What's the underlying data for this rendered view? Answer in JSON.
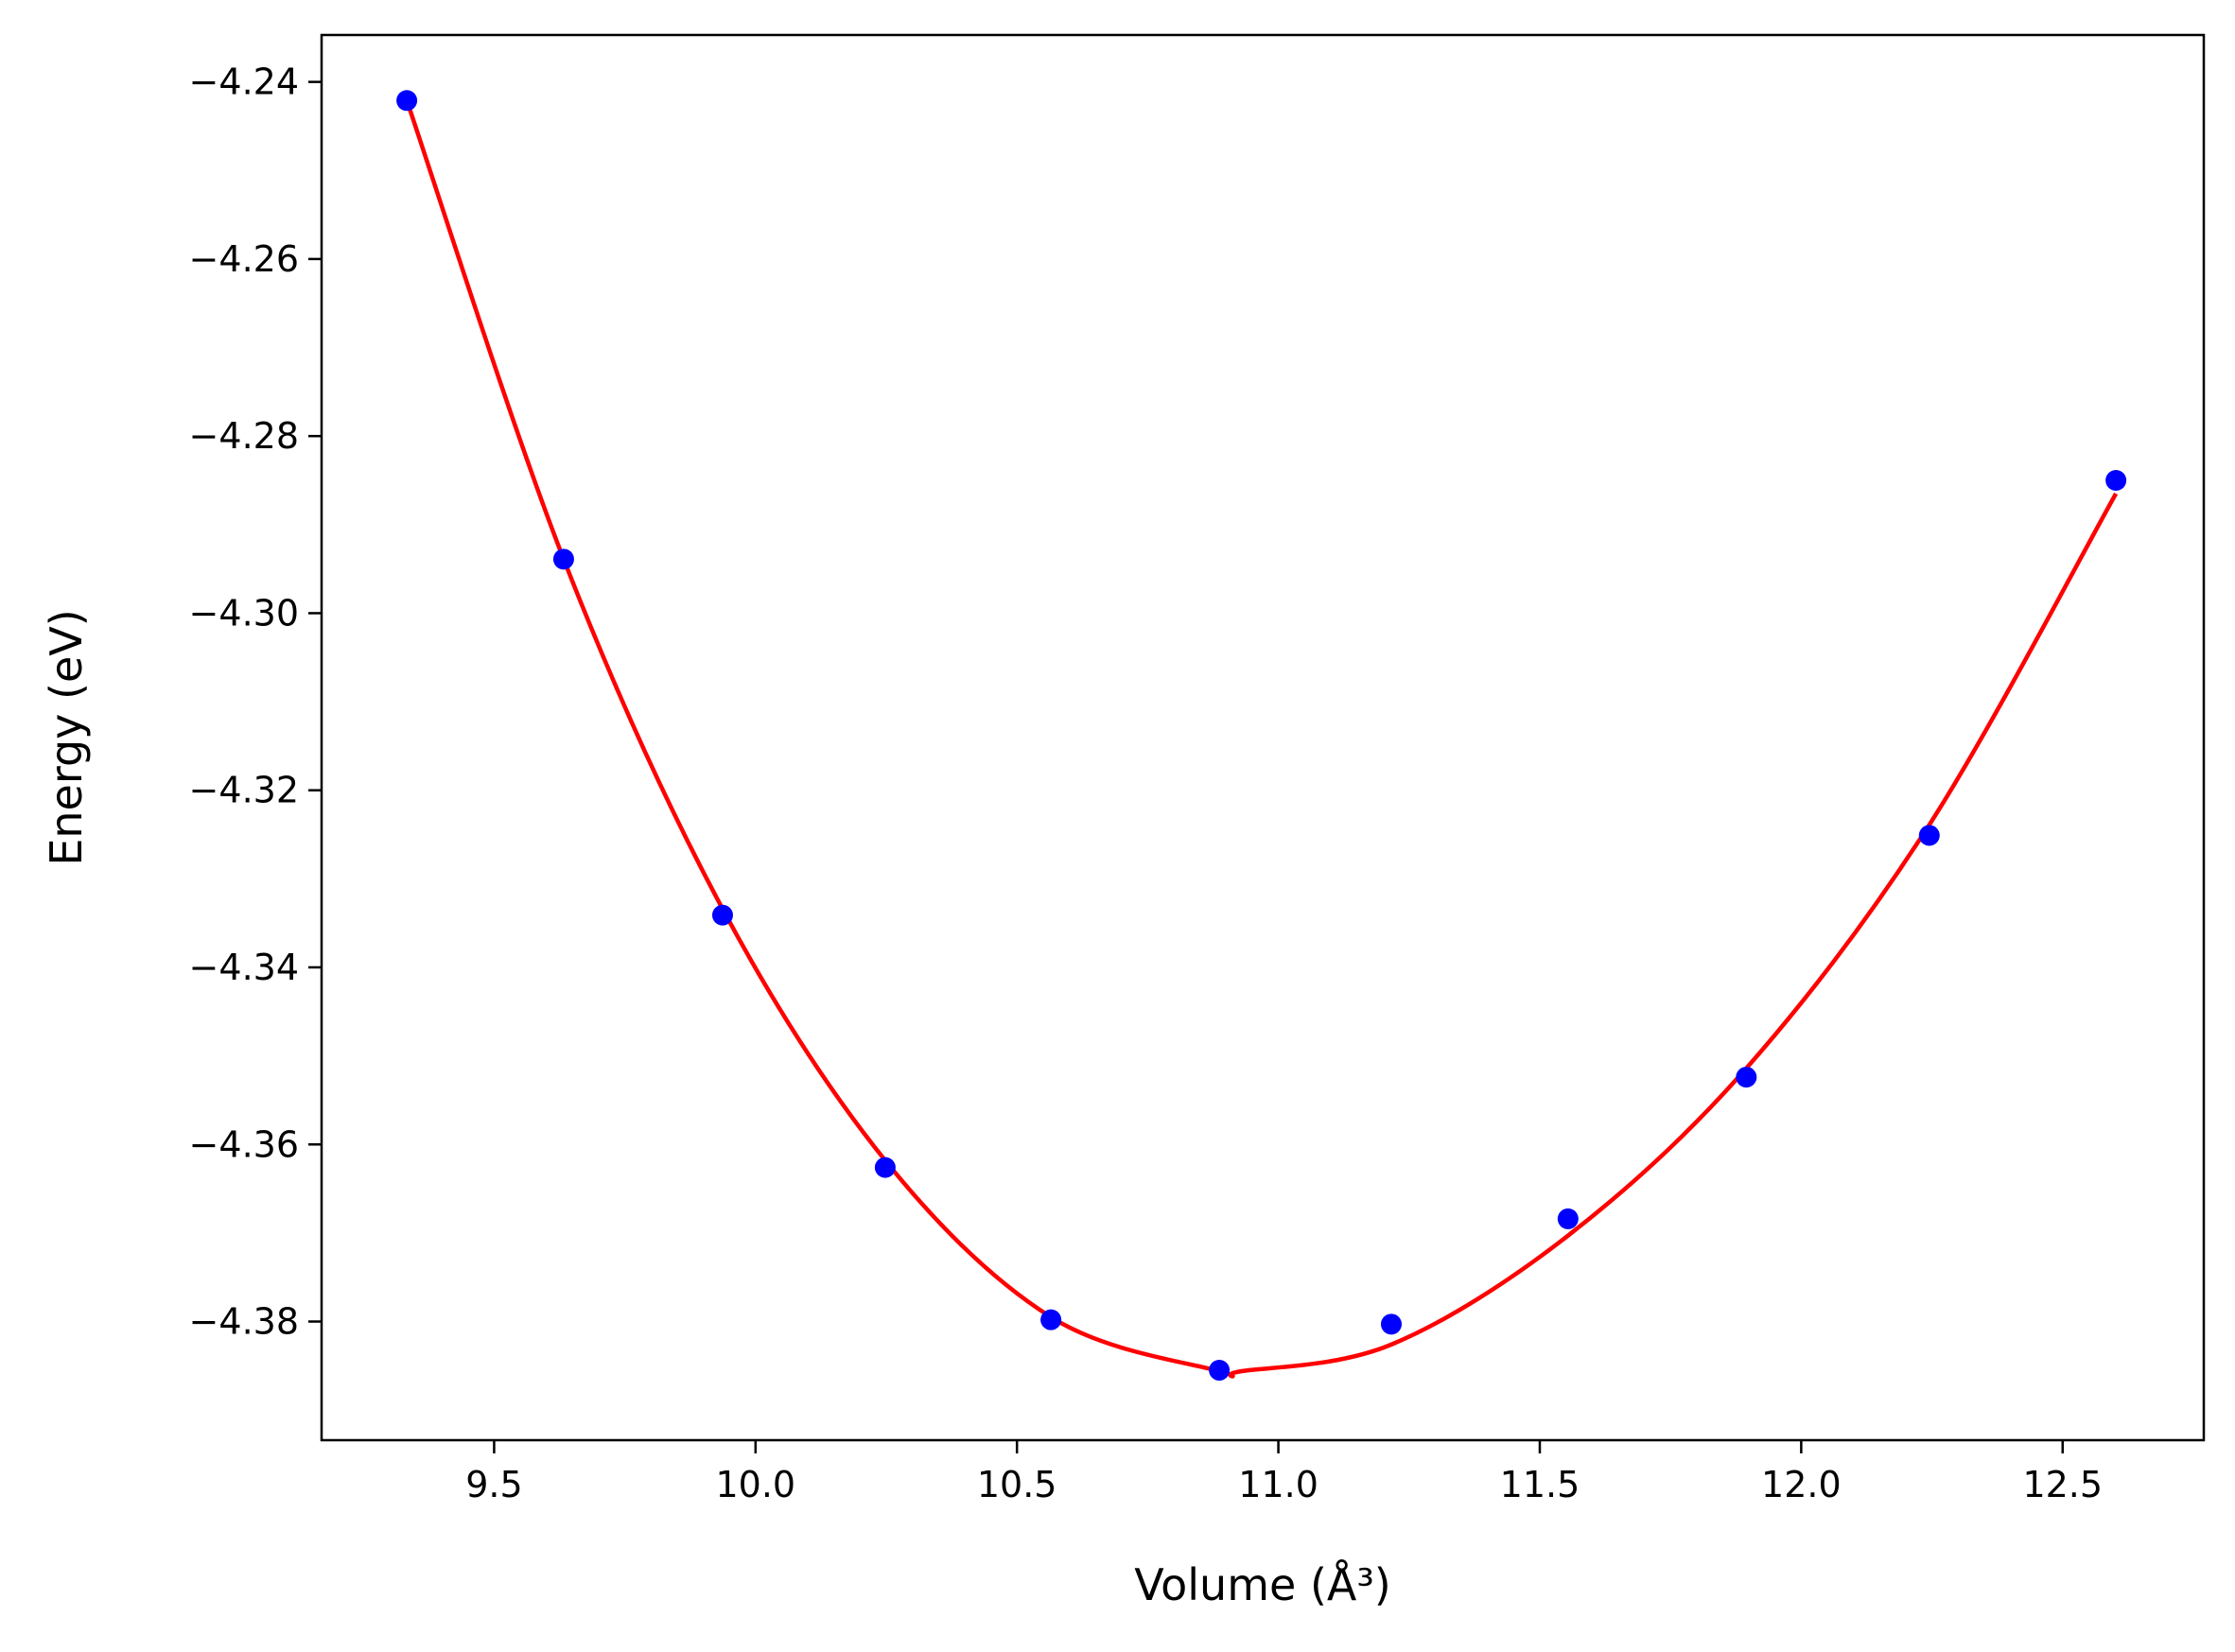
{
  "chart_data": {
    "type": "scatter",
    "title": "",
    "xlabel": "Volume (Å³)",
    "ylabel": "Energy (eV)",
    "xlim": [
      9.17,
      12.77
    ],
    "ylim": [
      -4.3934,
      -4.2347
    ],
    "x_ticks": [
      9.5,
      10.0,
      10.5,
      11.0,
      11.5,
      12.0,
      12.5
    ],
    "x_tick_labels": [
      "9.5",
      "10.0",
      "10.5",
      "11.0",
      "11.5",
      "12.0",
      "12.5"
    ],
    "y_ticks": [
      -4.24,
      -4.26,
      -4.28,
      -4.3,
      -4.32,
      -4.34,
      -4.36,
      -4.38
    ],
    "y_tick_labels": [
      "−4.24",
      "−4.26",
      "−4.28",
      "−4.30",
      "−4.32",
      "−4.34",
      "−4.36",
      "−4.38"
    ],
    "series": [
      {
        "name": "data",
        "kind": "points",
        "color": "#0000ff",
        "x": [
          9.333,
          9.633,
          9.937,
          10.248,
          10.565,
          10.887,
          11.216,
          11.554,
          11.895,
          12.245,
          12.602
        ],
        "y": [
          -4.2421,
          -4.2939,
          -4.3341,
          -4.3626,
          -4.3798,
          -4.3855,
          -4.3803,
          -4.3684,
          -4.3524,
          -4.3251,
          -4.285
        ]
      },
      {
        "name": "fit",
        "kind": "line",
        "color": "#ff0000",
        "x": [
          9.333,
          9.633,
          9.937,
          10.248,
          10.565,
          10.887,
          10.93,
          11.216,
          11.554,
          11.895,
          12.245,
          12.602
        ],
        "y": [
          -4.2421,
          -4.2939,
          -4.3334,
          -4.3618,
          -4.3795,
          -4.3856,
          -4.3856,
          -4.3826,
          -4.3703,
          -4.3514,
          -4.3239,
          -4.2865
        ]
      }
    ]
  }
}
